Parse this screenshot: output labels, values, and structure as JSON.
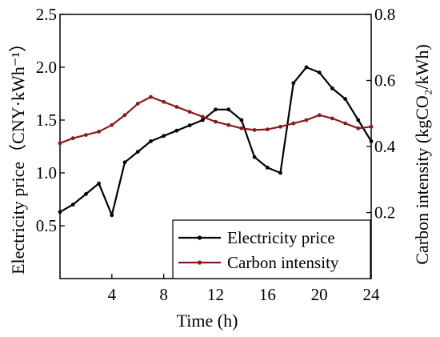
{
  "chart_data": {
    "type": "line",
    "xlabel": "Time (h)",
    "ylabel_left": "Electricity price（CNY·kWh⁻¹）",
    "ylabel_right": "Carbon intensity (kgCO₂/kWh)",
    "x_ticks": [
      4,
      8,
      12,
      16,
      20,
      24
    ],
    "y_left_ticks": [
      "0.5",
      "1.0",
      "1.5",
      "2.0",
      "2.5"
    ],
    "y_right_ticks": [
      "0.2",
      "0.4",
      "0.6",
      "0.8"
    ],
    "xlim": [
      0,
      24
    ],
    "ylim_left": [
      0.0,
      2.5
    ],
    "ylim_right": [
      0.0,
      0.8
    ],
    "legend_position": "bottom-right",
    "series": [
      {
        "name": "Electricity price",
        "axis": "left",
        "color": "#000000",
        "x": [
          0,
          1,
          2,
          3,
          4,
          5,
          6,
          7,
          8,
          9,
          10,
          11,
          12,
          13,
          14,
          15,
          16,
          17,
          18,
          19,
          20,
          21,
          22,
          23,
          24
        ],
        "y": [
          0.63,
          0.7,
          0.8,
          0.9,
          0.6,
          1.1,
          1.2,
          1.3,
          1.35,
          1.4,
          1.45,
          1.5,
          1.6,
          1.6,
          1.5,
          1.15,
          1.05,
          1.0,
          1.85,
          2.0,
          1.95,
          1.8,
          1.7,
          1.5,
          1.3
        ]
      },
      {
        "name": "Carbon intensity",
        "axis": "right",
        "color": "#8b1a1a",
        "x": [
          0,
          1,
          2,
          3,
          4,
          5,
          6,
          7,
          8,
          9,
          10,
          11,
          12,
          13,
          14,
          15,
          16,
          17,
          18,
          19,
          20,
          21,
          22,
          23,
          24
        ],
        "y": [
          0.41,
          0.425,
          0.435,
          0.445,
          0.465,
          0.495,
          0.53,
          0.55,
          0.535,
          0.52,
          0.505,
          0.49,
          0.475,
          0.465,
          0.455,
          0.45,
          0.452,
          0.46,
          0.47,
          0.48,
          0.495,
          0.485,
          0.47,
          0.455,
          0.46
        ]
      }
    ]
  }
}
